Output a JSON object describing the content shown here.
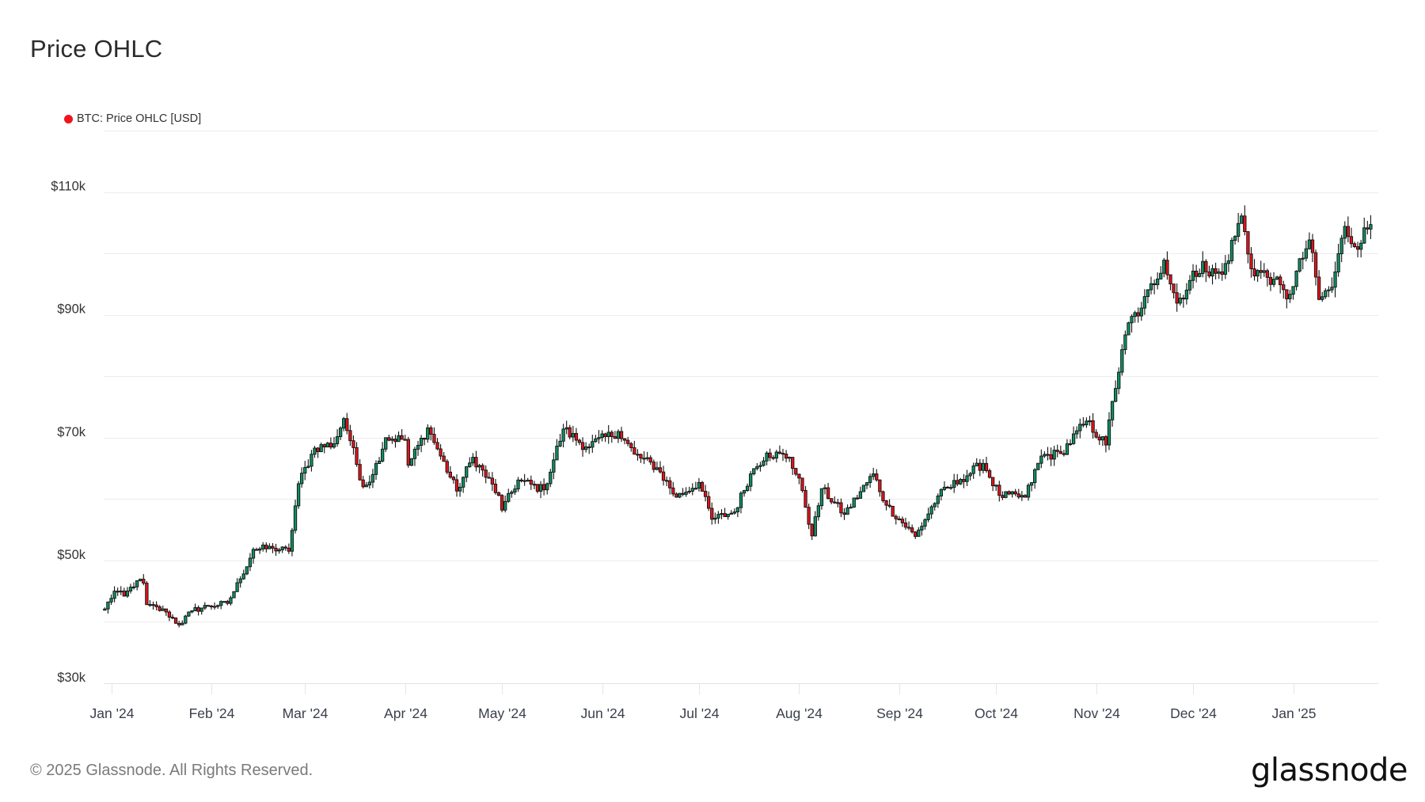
{
  "header": {
    "title": "Price OHLC"
  },
  "legend": {
    "items": [
      {
        "label": "BTC: Price OHLC [USD]",
        "color": "#f0141e"
      }
    ]
  },
  "footer": {
    "copyright": "© 2025 Glassnode. All Rights Reserved.",
    "brand": "glassnode"
  },
  "colors": {
    "up": "#0e8f62",
    "down": "#e3131b",
    "outline": "#111111",
    "grid": "#ececec",
    "axis_text": "#333333"
  },
  "chart_data": {
    "type": "candlestick",
    "title": "Price OHLC",
    "series": [
      {
        "name": "BTC: Price OHLC [USD]"
      }
    ],
    "xlabel": "",
    "ylabel": "",
    "ylim": [
      30000,
      120000
    ],
    "y_ticks": [
      {
        "value": 30000,
        "label": "$30k"
      },
      {
        "value": 50000,
        "label": "$50k"
      },
      {
        "value": 70000,
        "label": "$70k"
      },
      {
        "value": 90000,
        "label": "$90k"
      },
      {
        "value": 110000,
        "label": "$110k"
      }
    ],
    "y_gridlines": [
      30000,
      40000,
      50000,
      60000,
      70000,
      80000,
      90000,
      100000,
      110000,
      120000
    ],
    "x_ticks": [
      {
        "date": "2024-01-01",
        "label": "Jan '24"
      },
      {
        "date": "2024-02-01",
        "label": "Feb '24"
      },
      {
        "date": "2024-03-01",
        "label": "Mar '24"
      },
      {
        "date": "2024-04-01",
        "label": "Apr '24"
      },
      {
        "date": "2024-05-01",
        "label": "May '24"
      },
      {
        "date": "2024-06-01",
        "label": "Jun '24"
      },
      {
        "date": "2024-07-01",
        "label": "Jul '24"
      },
      {
        "date": "2024-08-01",
        "label": "Aug '24"
      },
      {
        "date": "2024-09-01",
        "label": "Sep '24"
      },
      {
        "date": "2024-10-01",
        "label": "Oct '24"
      },
      {
        "date": "2024-11-01",
        "label": "Nov '24"
      },
      {
        "date": "2024-12-01",
        "label": "Dec '24"
      },
      {
        "date": "2025-01-01",
        "label": "Jan '25"
      }
    ],
    "start_date": "2023-12-30",
    "end_date": "2025-01-25",
    "grid": true,
    "legend_position": "top-left",
    "close_anchors": [
      [
        "2023-12-30",
        42100
      ],
      [
        "2024-01-02",
        45000
      ],
      [
        "2024-01-05",
        44200
      ],
      [
        "2024-01-09",
        46700
      ],
      [
        "2024-01-11",
        46300
      ],
      [
        "2024-01-12",
        42800
      ],
      [
        "2024-01-18",
        41600
      ],
      [
        "2024-01-22",
        39500
      ],
      [
        "2024-01-26",
        41800
      ],
      [
        "2024-01-31",
        42600
      ],
      [
        "2024-02-06",
        43000
      ],
      [
        "2024-02-10",
        47000
      ],
      [
        "2024-02-14",
        51800
      ],
      [
        "2024-02-20",
        52000
      ],
      [
        "2024-02-25",
        51500
      ],
      [
        "2024-02-28",
        62500
      ],
      [
        "2024-03-04",
        68300
      ],
      [
        "2024-03-10",
        69000
      ],
      [
        "2024-03-13",
        73100
      ],
      [
        "2024-03-15",
        69500
      ],
      [
        "2024-03-19",
        62000
      ],
      [
        "2024-03-22",
        64000
      ],
      [
        "2024-03-26",
        70000
      ],
      [
        "2024-04-01",
        69700
      ],
      [
        "2024-04-02",
        65500
      ],
      [
        "2024-04-08",
        71600
      ],
      [
        "2024-04-12",
        67000
      ],
      [
        "2024-04-17",
        61300
      ],
      [
        "2024-04-22",
        66800
      ],
      [
        "2024-04-30",
        60600
      ],
      [
        "2024-05-01",
        58200
      ],
      [
        "2024-05-06",
        63100
      ],
      [
        "2024-05-14",
        61500
      ],
      [
        "2024-05-20",
        71400
      ],
      [
        "2024-05-27",
        68500
      ],
      [
        "2024-06-06",
        71000
      ],
      [
        "2024-06-11",
        67300
      ],
      [
        "2024-06-18",
        65100
      ],
      [
        "2024-06-24",
        60300
      ],
      [
        "2024-07-01",
        62700
      ],
      [
        "2024-07-05",
        56700
      ],
      [
        "2024-07-12",
        57900
      ],
      [
        "2024-07-17",
        64100
      ],
      [
        "2024-07-22",
        67500
      ],
      [
        "2024-07-29",
        66800
      ],
      [
        "2024-08-02",
        61400
      ],
      [
        "2024-08-05",
        54000
      ],
      [
        "2024-08-08",
        61700
      ],
      [
        "2024-08-15",
        57500
      ],
      [
        "2024-08-24",
        64100
      ],
      [
        "2024-08-28",
        59000
      ],
      [
        "2024-09-06",
        53900
      ],
      [
        "2024-09-13",
        60500
      ],
      [
        "2024-09-20",
        63200
      ],
      [
        "2024-09-27",
        65800
      ],
      [
        "2024-10-02",
        60600
      ],
      [
        "2024-10-10",
        60300
      ],
      [
        "2024-10-15",
        67000
      ],
      [
        "2024-10-21",
        67400
      ],
      [
        "2024-10-29",
        72700
      ],
      [
        "2024-11-04",
        68800
      ],
      [
        "2024-11-06",
        75900
      ],
      [
        "2024-11-11",
        88700
      ],
      [
        "2024-11-15",
        91100
      ],
      [
        "2024-11-22",
        98900
      ],
      [
        "2024-11-26",
        91900
      ],
      [
        "2024-12-04",
        98700
      ],
      [
        "2024-12-05",
        97000
      ],
      [
        "2024-12-10",
        96600
      ],
      [
        "2024-12-16",
        106100
      ],
      [
        "2024-12-19",
        97500
      ],
      [
        "2024-12-26",
        95800
      ],
      [
        "2024-12-30",
        92600
      ],
      [
        "2025-01-06",
        102200
      ],
      [
        "2025-01-09",
        92500
      ],
      [
        "2025-01-13",
        94500
      ],
      [
        "2025-01-17",
        104400
      ],
      [
        "2025-01-20",
        101100
      ],
      [
        "2025-01-25",
        104700
      ]
    ]
  }
}
